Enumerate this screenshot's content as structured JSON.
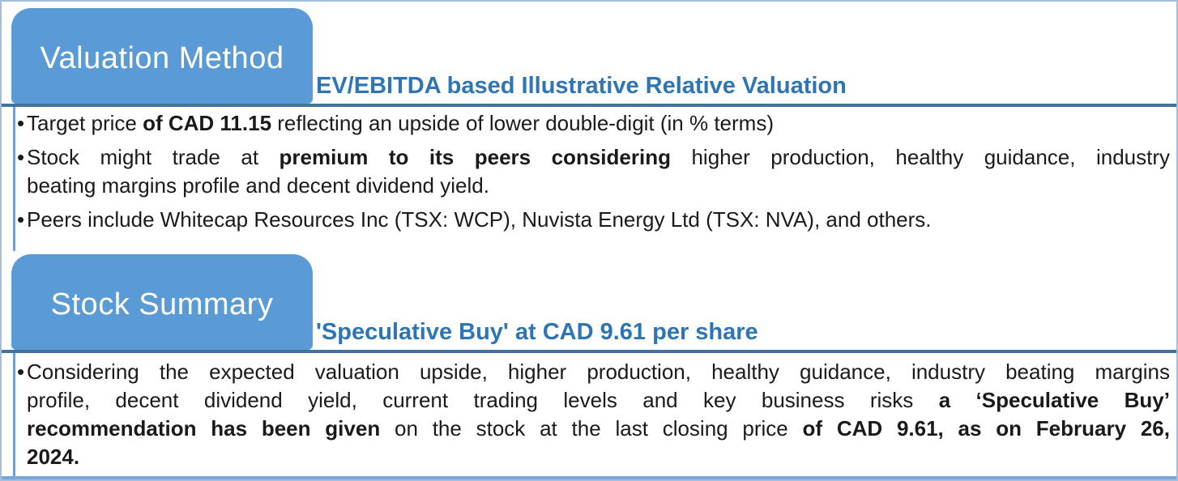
{
  "document": {
    "bullet_char": "•",
    "colors": {
      "tab_fill": "#5B9BD5",
      "tab_text": "#FFFFFF",
      "subtitle_text": "#2E75B6",
      "divider": "#41719C",
      "content_border": "#71A0D5",
      "outer_border": "#A3BEDC",
      "bottom_bar": "#7AA7D9",
      "body_text": "#1A1A1A"
    },
    "sections": [
      {
        "tab_label": "Valuation Method",
        "subtitle": "EV/EBITDA based Illustrative Relative Valuation",
        "bullets": [
          {
            "lines": [
              {
                "justify": false,
                "segments": [
                  {
                    "text": "Target price ",
                    "bold": false
                  },
                  {
                    "text": "of CAD 11.15",
                    "bold": true
                  },
                  {
                    "text": " reflecting an upside of lower double-digit (in % terms)",
                    "bold": false
                  }
                ]
              }
            ]
          },
          {
            "lines": [
              {
                "justify": true,
                "segments": [
                  {
                    "text": "Stock might trade at ",
                    "bold": false
                  },
                  {
                    "text": "premium to its peers considering",
                    "bold": true
                  },
                  {
                    "text": " higher production, healthy guidance, industry",
                    "bold": false
                  }
                ]
              },
              {
                "justify": false,
                "segments": [
                  {
                    "text": "beating margins profile and decent dividend yield.",
                    "bold": false
                  }
                ]
              }
            ]
          },
          {
            "lines": [
              {
                "justify": false,
                "segments": [
                  {
                    "text": "Peers include Whitecap Resources Inc (TSX: WCP), Nuvista Energy Ltd (TSX: NVA), and others.",
                    "bold": false
                  }
                ]
              }
            ]
          }
        ]
      },
      {
        "tab_label": "Stock Summary",
        "subtitle": "'Speculative Buy' at CAD 9.61 per share",
        "bullets": [
          {
            "lines": [
              {
                "justify": true,
                "segments": [
                  {
                    "text": "Considering the expected valuation upside, higher production, healthy guidance, industry beating margins",
                    "bold": false
                  }
                ]
              },
              {
                "justify": true,
                "segments": [
                  {
                    "text": "profile, decent dividend yield, current trading levels and key business risks ",
                    "bold": false
                  },
                  {
                    "text": "a ‘Speculative Buy’",
                    "bold": true
                  }
                ]
              },
              {
                "justify": true,
                "segments": [
                  {
                    "text": "recommendation has been given",
                    "bold": true
                  },
                  {
                    "text": " on the stock at the last closing price ",
                    "bold": false
                  },
                  {
                    "text": "of CAD 9.61, as on February 26,",
                    "bold": true
                  }
                ]
              },
              {
                "justify": false,
                "segments": [
                  {
                    "text": "2024.",
                    "bold": true
                  }
                ]
              }
            ]
          }
        ]
      }
    ]
  }
}
